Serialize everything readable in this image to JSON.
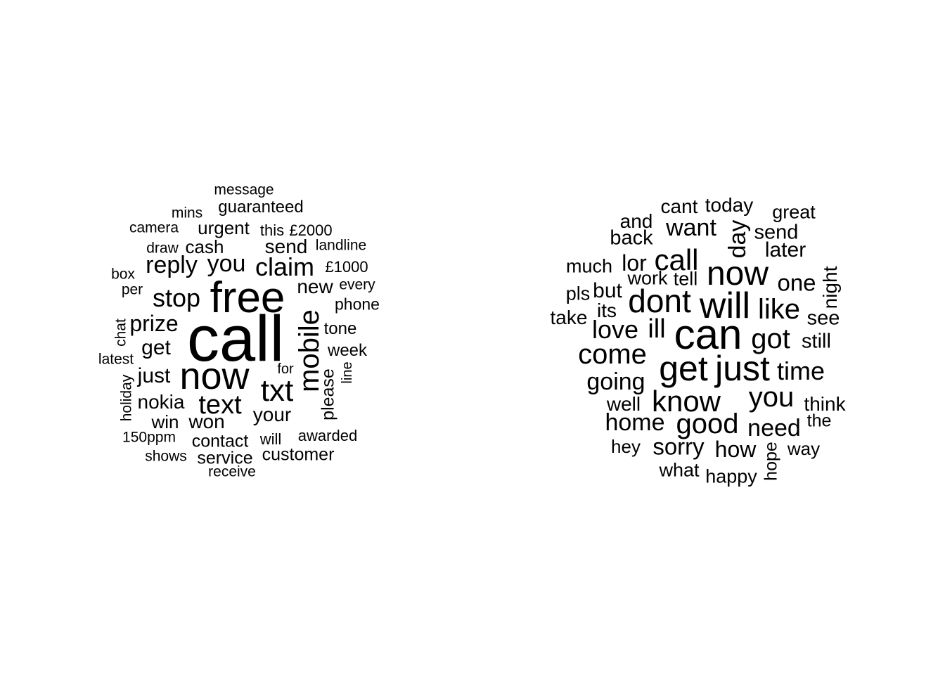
{
  "spam_cloud": {
    "w_call": "call",
    "w_free": "free",
    "w_now": "now",
    "w_txt": "txt",
    "w_mobile": "mobile",
    "w_text": "text",
    "w_claim": "claim",
    "w_stop": "stop",
    "w_reply": "reply",
    "w_you": "you",
    "w_prize": "prize",
    "w_get": "get",
    "w_just": "just",
    "w_nokia": "nokia",
    "w_won": "won",
    "w_your": "your",
    "w_win": "win",
    "w_new": "new",
    "w_send": "send",
    "w_cash": "cash",
    "w_urgent": "urgent",
    "w_contact": "contact",
    "w_service": "service",
    "w_customer": "customer",
    "w_please": "please",
    "w_guaranteed": "guaranteed",
    "w_week": "week",
    "w_tone": "tone",
    "w_phone": "phone",
    "w_awarded": "awarded",
    "w_will": "will",
    "w_this": "this",
    "w_2000": "£2000",
    "w_1000": "£1000",
    "w_landline": "landline",
    "w_every": "every",
    "w_message": "message",
    "w_mins": "mins",
    "w_camera": "camera",
    "w_draw": "draw",
    "w_box": "box",
    "w_per": "per",
    "w_chat": "chat",
    "w_latest": "latest",
    "w_holiday": "holiday",
    "w_150ppm": "150ppm",
    "w_shows": "shows",
    "w_receive": "receive",
    "w_for": "for",
    "w_line": "line"
  },
  "ham_cloud": {
    "w_can": "can",
    "w_get": "get",
    "w_just": "just",
    "w_will": "will",
    "w_now": "now",
    "w_dont": "dont",
    "w_call": "call",
    "w_know": "know",
    "w_come": "come",
    "w_got": "got",
    "w_good": "good",
    "w_like": "like",
    "w_you": "you",
    "w_time": "time",
    "w_ill": "ill",
    "w_love": "love",
    "w_home": "home",
    "w_need": "need",
    "w_going": "going",
    "w_want": "want",
    "w_sorry": "sorry",
    "w_day": "day",
    "w_one": "one",
    "w_how": "how",
    "w_lor": "lor",
    "w_later": "later",
    "w_send": "send",
    "w_back": "back",
    "w_today": "today",
    "w_cant": "cant",
    "w_and": "and",
    "w_great": "great",
    "w_much": "much",
    "w_work": "work",
    "w_tell": "tell",
    "w_but": "but",
    "w_pls": "pls",
    "w_its": "its",
    "w_take": "take",
    "w_night": "night",
    "w_see": "see",
    "w_still": "still",
    "w_think": "think",
    "w_the": "the",
    "w_way": "way",
    "w_well": "well",
    "w_hey": "hey",
    "w_what": "what",
    "w_happy": "happy",
    "w_hope": "hope"
  }
}
